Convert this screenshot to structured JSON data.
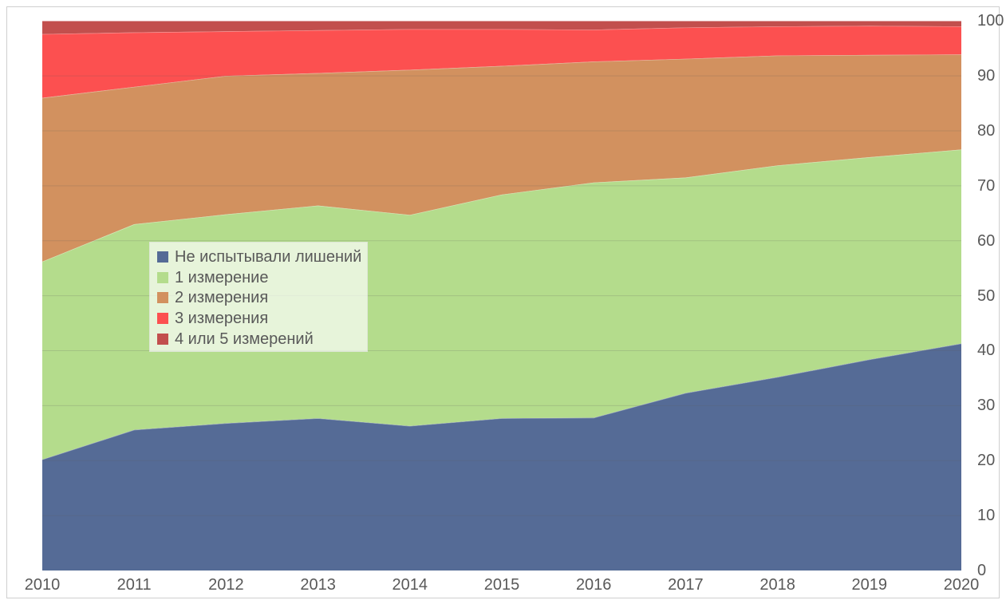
{
  "chart_data": {
    "type": "area",
    "stacked": true,
    "title": "",
    "xlabel": "",
    "ylabel": "",
    "categories": [
      "2010",
      "2011",
      "2012",
      "2013",
      "2014",
      "2015",
      "2016",
      "2017",
      "2018",
      "2019",
      "2020"
    ],
    "series": [
      {
        "name": "Не испытывали лишений",
        "color": "#556B96",
        "values": [
          20.2,
          25.6,
          26.8,
          27.7,
          26.3,
          27.7,
          27.8,
          32.3,
          35.2,
          38.4,
          41.3
        ]
      },
      {
        "name": "1 измерение",
        "color": "#B4DC8C",
        "values": [
          36.0,
          37.4,
          38.0,
          38.7,
          38.4,
          40.7,
          42.8,
          39.2,
          38.5,
          36.8,
          35.3
        ]
      },
      {
        "name": "2 измерения",
        "color": "#D2915F",
        "values": [
          29.8,
          25.0,
          25.2,
          24.1,
          26.4,
          23.4,
          22.0,
          21.6,
          20.0,
          18.6,
          17.3
        ]
      },
      {
        "name": "3 измерения",
        "color": "#FC5050",
        "values": [
          11.6,
          9.9,
          8.1,
          7.8,
          7.4,
          6.7,
          5.8,
          5.7,
          5.3,
          5.3,
          5.1
        ]
      },
      {
        "name": "4 или 5 измерений",
        "color": "#C24F4D",
        "values": [
          2.4,
          2.1,
          1.9,
          1.7,
          1.5,
          1.5,
          1.6,
          1.2,
          1.0,
          0.9,
          1.0
        ]
      }
    ],
    "ylim": [
      0,
      100
    ],
    "yticks": [
      0,
      10,
      20,
      30,
      40,
      50,
      60,
      70,
      80,
      90,
      100
    ],
    "grid": true,
    "gridline_color": "#595959",
    "axis_text_color": "#595959",
    "legend_position": "inside-left",
    "plot_background": "#ffffff"
  }
}
